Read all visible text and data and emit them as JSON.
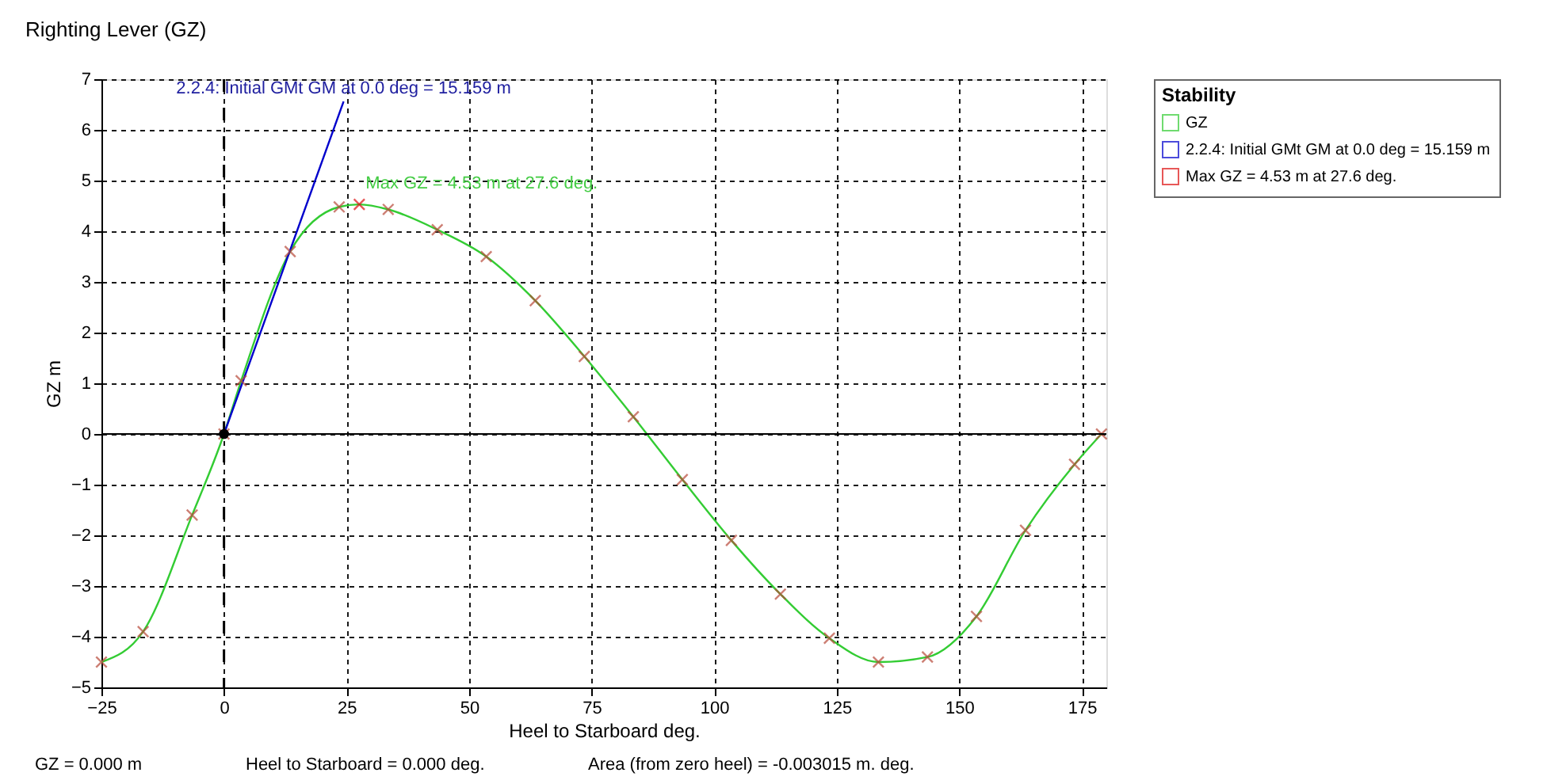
{
  "chart_data": {
    "type": "line",
    "title": "Righting Lever (GZ)",
    "xlabel": "Heel to Starboard   deg.",
    "ylabel": "GZ  m",
    "legend_title": "Stability",
    "xlim": [
      -25,
      180
    ],
    "ylim": [
      -5,
      7
    ],
    "xticks": [
      -25,
      0,
      25,
      50,
      75,
      100,
      125,
      150,
      175
    ],
    "yticks": [
      -5,
      -4,
      -3,
      -2,
      -1,
      0,
      1,
      2,
      3,
      4,
      5,
      6,
      7
    ],
    "grid": true,
    "legend": "top right",
    "series": [
      {
        "name": "GZ",
        "color": "#33cc33",
        "marker": "none",
        "x": [
          -25,
          -16.5,
          -6.5,
          0,
          3.5,
          13.5,
          23.5,
          27.6,
          33.5,
          43.5,
          53.5,
          63.5,
          73.5,
          83.5,
          93.5,
          103.5,
          113.5,
          123.5,
          133.5,
          143.5,
          153.5,
          163.5,
          173.5,
          179
        ],
        "values": [
          -4.5,
          -3.9,
          -1.6,
          0,
          1.05,
          3.6,
          4.48,
          4.53,
          4.43,
          4.03,
          3.5,
          2.63,
          1.53,
          0.34,
          -0.9,
          -2.1,
          -3.16,
          -4.03,
          -4.5,
          -4.4,
          -3.6,
          -1.9,
          -0.6,
          0
        ]
      },
      {
        "name": "2.2.4: Initial GMt GM at 0.0 deg = 15.159 m",
        "type": "line",
        "color": "#0000cc",
        "marker": "none",
        "x": [
          0,
          24.4
        ],
        "values": [
          0,
          6.56
        ]
      },
      {
        "name": "Max GZ = 4.53 m at 27.6 deg.",
        "type": "scatter",
        "color": "#dd1111",
        "marker": "cross",
        "x": [
          27.6
        ],
        "values": [
          4.53
        ]
      },
      {
        "type": "scatter",
        "color": "#b84a3a",
        "marker": "cross",
        "x": [
          -25,
          -16.5,
          -6.5,
          0,
          3.5,
          13.5,
          23.5,
          33.5,
          43.5,
          53.5,
          63.5,
          73.5,
          83.5,
          93.5,
          103.5,
          113.5,
          123.5,
          133.5,
          143.5,
          153.5,
          163.5,
          173.5,
          179
        ],
        "values": [
          -4.5,
          -3.9,
          -1.6,
          0,
          1.05,
          3.6,
          4.48,
          4.43,
          4.03,
          3.5,
          2.63,
          1.53,
          0.34,
          -0.9,
          -2.1,
          -3.16,
          -4.03,
          -4.5,
          -4.4,
          -3.6,
          -1.9,
          -0.6,
          0
        ]
      },
      {
        "type": "scatter",
        "color": "#000000",
        "marker": "circle",
        "x": [
          0
        ],
        "values": [
          0
        ]
      }
    ],
    "ref_lines": [
      {
        "axis": "x",
        "value": 0,
        "line_style": "dashed",
        "color": "#000000"
      },
      {
        "axis": "y",
        "value": 0,
        "line_style": "solid",
        "color": "#000000"
      }
    ],
    "annotations": [
      {
        "text": "2.2.4: Initial GMt GM at 0.0 deg = 15.159 m",
        "x": 24.4,
        "y": 6.56
      },
      {
        "text": "Max GZ = 4.53 m at 27.6 deg.",
        "x": 27.6,
        "y": 4.53
      },
      "GZ =  0.000 m",
      "Heel to Starboard =  0.000  deg.",
      "Area (from zero heel) = -0.003015 m. deg."
    ]
  }
}
